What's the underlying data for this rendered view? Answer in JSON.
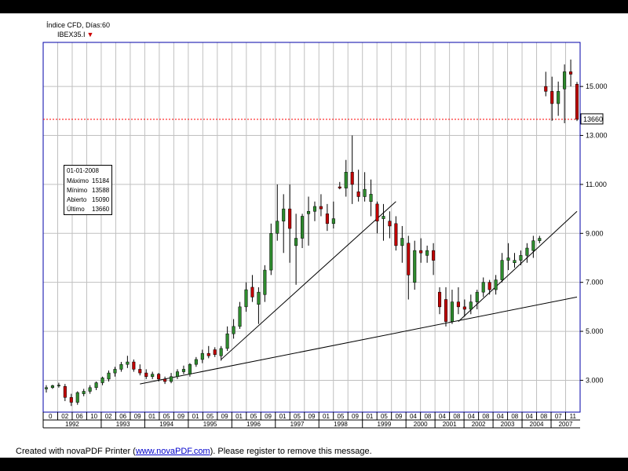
{
  "header": {
    "title": "Índice CFD, Días:60",
    "symbol": "IBEX35.I",
    "symbol_arrow": "▼"
  },
  "info_box": {
    "date": "01-01-2008",
    "rows": [
      {
        "label": "Máximo",
        "value": "15184"
      },
      {
        "label": "Mínimo",
        "value": "13588"
      },
      {
        "label": "Abierto",
        "value": "15090"
      },
      {
        "label": "Último",
        "value": "13660"
      }
    ]
  },
  "price_tag": "13660",
  "footer": {
    "prefix": "Created with novaPDF Printer (",
    "link": "www.novaPDF.com",
    "suffix": "). Please register to remove this message."
  },
  "colors": {
    "frame": "#0000aa",
    "grid": "#c0c0c0",
    "up": "#2e8b2e",
    "down": "#c00000",
    "reference_line": "#ff0000"
  },
  "chart_data": {
    "type": "candlestick",
    "title": "Índice CFD, Días:60",
    "series_name": "IBEX35.I",
    "y_ticks": [
      "3.000",
      "5.000",
      "7.000",
      "9.000",
      "11.000",
      "13.000",
      "15.000"
    ],
    "y_tick_values": [
      3000,
      5000,
      7000,
      9000,
      11000,
      13000,
      15000
    ],
    "ylim": [
      1700,
      16800
    ],
    "grid": true,
    "last_price": 13660,
    "month_labels": [
      "0",
      "02",
      "06",
      "10",
      "02",
      "06",
      "09",
      "01",
      "05",
      "09",
      "01",
      "05",
      "09",
      "01",
      "05",
      "09",
      "01",
      "05",
      "09",
      "01",
      "05",
      "09",
      "01",
      "05",
      "09",
      "04",
      "08",
      "04",
      "08",
      "04",
      "08",
      "04",
      "08",
      "04",
      "08",
      "07",
      "11"
    ],
    "year_labels": [
      {
        "label": "1992",
        "span": [
          0,
          4
        ]
      },
      {
        "label": "1993",
        "span": [
          4,
          7
        ]
      },
      {
        "label": "1994",
        "span": [
          7,
          10
        ]
      },
      {
        "label": "1995",
        "span": [
          10,
          13
        ]
      },
      {
        "label": "1996",
        "span": [
          13,
          16
        ]
      },
      {
        "label": "1997",
        "span": [
          16,
          19
        ]
      },
      {
        "label": "1998",
        "span": [
          19,
          22
        ]
      },
      {
        "label": "1999",
        "span": [
          22,
          25
        ]
      },
      {
        "label": "2000",
        "span": [
          25,
          27
        ]
      },
      {
        "label": "2001",
        "span": [
          27,
          29
        ]
      },
      {
        "label": "2002",
        "span": [
          29,
          31
        ]
      },
      {
        "label": "2003",
        "span": [
          31,
          33
        ]
      },
      {
        "label": "2004",
        "span": [
          33,
          35
        ]
      },
      {
        "label": "2007",
        "span": [
          35,
          37
        ]
      }
    ],
    "candles": [
      {
        "o": 2650,
        "h": 2800,
        "l": 2500,
        "c": 2700
      },
      {
        "o": 2700,
        "h": 2820,
        "l": 2650,
        "c": 2780
      },
      {
        "o": 2780,
        "h": 2900,
        "l": 2700,
        "c": 2800
      },
      {
        "o": 2750,
        "h": 2850,
        "l": 2150,
        "c": 2300
      },
      {
        "o": 2300,
        "h": 2450,
        "l": 1950,
        "c": 2100
      },
      {
        "o": 2100,
        "h": 2550,
        "l": 2000,
        "c": 2500
      },
      {
        "o": 2450,
        "h": 2650,
        "l": 2350,
        "c": 2550
      },
      {
        "o": 2550,
        "h": 2800,
        "l": 2450,
        "c": 2700
      },
      {
        "o": 2700,
        "h": 2950,
        "l": 2600,
        "c": 2900
      },
      {
        "o": 2900,
        "h": 3150,
        "l": 2800,
        "c": 3100
      },
      {
        "o": 3050,
        "h": 3400,
        "l": 2950,
        "c": 3300
      },
      {
        "o": 3300,
        "h": 3550,
        "l": 3150,
        "c": 3450
      },
      {
        "o": 3450,
        "h": 3750,
        "l": 3350,
        "c": 3650
      },
      {
        "o": 3650,
        "h": 4000,
        "l": 3500,
        "c": 3750
      },
      {
        "o": 3750,
        "h": 3850,
        "l": 3350,
        "c": 3450
      },
      {
        "o": 3450,
        "h": 3650,
        "l": 3200,
        "c": 3300
      },
      {
        "o": 3300,
        "h": 3450,
        "l": 3050,
        "c": 3150
      },
      {
        "o": 3150,
        "h": 3350,
        "l": 3050,
        "c": 3250
      },
      {
        "o": 3250,
        "h": 3300,
        "l": 2950,
        "c": 3050
      },
      {
        "o": 3050,
        "h": 3150,
        "l": 2850,
        "c": 2950
      },
      {
        "o": 2950,
        "h": 3300,
        "l": 2880,
        "c": 3150
      },
      {
        "o": 3150,
        "h": 3450,
        "l": 3050,
        "c": 3350
      },
      {
        "o": 3350,
        "h": 3600,
        "l": 3250,
        "c": 3450
      },
      {
        "o": 3250,
        "h": 3700,
        "l": 3150,
        "c": 3650
      },
      {
        "o": 3650,
        "h": 3950,
        "l": 3550,
        "c": 3850
      },
      {
        "o": 3850,
        "h": 4250,
        "l": 3700,
        "c": 4100
      },
      {
        "o": 4100,
        "h": 4400,
        "l": 3900,
        "c": 4000
      },
      {
        "o": 4250,
        "h": 4350,
        "l": 3950,
        "c": 4050
      },
      {
        "o": 4000,
        "h": 4400,
        "l": 3800,
        "c": 4300
      },
      {
        "o": 4300,
        "h": 5200,
        "l": 4200,
        "c": 4900
      },
      {
        "o": 4900,
        "h": 5500,
        "l": 4700,
        "c": 5200
      },
      {
        "o": 5200,
        "h": 6200,
        "l": 5100,
        "c": 6000
      },
      {
        "o": 6000,
        "h": 7000,
        "l": 5800,
        "c": 6700
      },
      {
        "o": 6800,
        "h": 7300,
        "l": 6200,
        "c": 6400
      },
      {
        "o": 6100,
        "h": 6800,
        "l": 5300,
        "c": 6600
      },
      {
        "o": 6500,
        "h": 7700,
        "l": 6200,
        "c": 7500
      },
      {
        "o": 7500,
        "h": 9400,
        "l": 7300,
        "c": 9000
      },
      {
        "o": 9000,
        "h": 11000,
        "l": 8700,
        "c": 9500
      },
      {
        "o": 9500,
        "h": 10600,
        "l": 8200,
        "c": 10000
      },
      {
        "o": 10000,
        "h": 11000,
        "l": 7800,
        "c": 9200
      },
      {
        "o": 8500,
        "h": 9800,
        "l": 6900,
        "c": 8800
      },
      {
        "o": 8800,
        "h": 9800,
        "l": 8400,
        "c": 9700
      },
      {
        "o": 9800,
        "h": 10500,
        "l": 8500,
        "c": 9900
      },
      {
        "o": 9900,
        "h": 10300,
        "l": 9500,
        "c": 10100
      },
      {
        "o": 10100,
        "h": 10600,
        "l": 9700,
        "c": 10000
      },
      {
        "o": 9800,
        "h": 10200,
        "l": 9100,
        "c": 9400
      },
      {
        "o": 9400,
        "h": 10300,
        "l": 9200,
        "c": 9600
      },
      {
        "o": 10900,
        "h": 11100,
        "l": 10800,
        "c": 10850
      },
      {
        "o": 10850,
        "h": 12000,
        "l": 10500,
        "c": 11500
      },
      {
        "o": 11500,
        "h": 13000,
        "l": 10200,
        "c": 11000
      },
      {
        "o": 10700,
        "h": 11600,
        "l": 10300,
        "c": 10500
      },
      {
        "o": 10500,
        "h": 11500,
        "l": 10300,
        "c": 10800
      },
      {
        "o": 10300,
        "h": 11200,
        "l": 9700,
        "c": 10600
      },
      {
        "o": 10200,
        "h": 10300,
        "l": 9000,
        "c": 9500
      },
      {
        "o": 9600,
        "h": 10200,
        "l": 8700,
        "c": 9700
      },
      {
        "o": 9500,
        "h": 9900,
        "l": 8800,
        "c": 9300
      },
      {
        "o": 9400,
        "h": 9700,
        "l": 8300,
        "c": 8500
      },
      {
        "o": 8500,
        "h": 9300,
        "l": 7800,
        "c": 8800
      },
      {
        "o": 8600,
        "h": 8900,
        "l": 6300,
        "c": 7300
      },
      {
        "o": 7000,
        "h": 8700,
        "l": 6700,
        "c": 8300
      },
      {
        "o": 8300,
        "h": 8800,
        "l": 7800,
        "c": 8200
      },
      {
        "o": 8100,
        "h": 8500,
        "l": 7800,
        "c": 8300
      },
      {
        "o": 8300,
        "h": 8600,
        "l": 7300,
        "c": 7900
      },
      {
        "o": 6600,
        "h": 6800,
        "l": 5700,
        "c": 6000
      },
      {
        "o": 6300,
        "h": 6800,
        "l": 5200,
        "c": 5400
      },
      {
        "o": 5400,
        "h": 6700,
        "l": 5300,
        "c": 6200
      },
      {
        "o": 6200,
        "h": 6800,
        "l": 5700,
        "c": 6000
      },
      {
        "o": 6000,
        "h": 6300,
        "l": 5600,
        "c": 5900
      },
      {
        "o": 5900,
        "h": 6500,
        "l": 5700,
        "c": 6200
      },
      {
        "o": 6200,
        "h": 6700,
        "l": 5900,
        "c": 6600
      },
      {
        "o": 6600,
        "h": 7200,
        "l": 6400,
        "c": 7000
      },
      {
        "o": 7000,
        "h": 7100,
        "l": 6500,
        "c": 6700
      },
      {
        "o": 6700,
        "h": 7300,
        "l": 6500,
        "c": 7100
      },
      {
        "o": 7100,
        "h": 8200,
        "l": 7000,
        "c": 7900
      },
      {
        "o": 7900,
        "h": 8600,
        "l": 7500,
        "c": 8000
      },
      {
        "o": 7800,
        "h": 8200,
        "l": 7600,
        "c": 7900
      },
      {
        "o": 7900,
        "h": 8300,
        "l": 7700,
        "c": 8100
      },
      {
        "o": 8100,
        "h": 8600,
        "l": 7800,
        "c": 8400
      },
      {
        "o": 8300,
        "h": 8900,
        "l": 8000,
        "c": 8700
      },
      {
        "o": 8700,
        "h": 8900,
        "l": 8600,
        "c": 8800
      },
      {
        "o": 15000,
        "h": 15600,
        "l": 14600,
        "c": 14800
      },
      {
        "o": 14800,
        "h": 15400,
        "l": 13600,
        "c": 14300
      },
      {
        "o": 14300,
        "h": 15200,
        "l": 13800,
        "c": 14800
      },
      {
        "o": 14900,
        "h": 15900,
        "l": 13500,
        "c": 15600
      },
      {
        "o": 15600,
        "h": 16100,
        "l": 15000,
        "c": 15500
      },
      {
        "o": 15090,
        "h": 15184,
        "l": 13588,
        "c": 13660
      }
    ],
    "trendlines": [
      {
        "from": {
          "i": 28,
          "v": 3850
        },
        "to": {
          "i": 56,
          "v": 10300
        }
      },
      {
        "from": {
          "i": 15,
          "v": 2850
        },
        "to": {
          "i": 85,
          "v": 6400
        }
      },
      {
        "from": {
          "i": 66,
          "v": 5400
        },
        "to": {
          "i": 85,
          "v": 9900
        }
      }
    ]
  }
}
